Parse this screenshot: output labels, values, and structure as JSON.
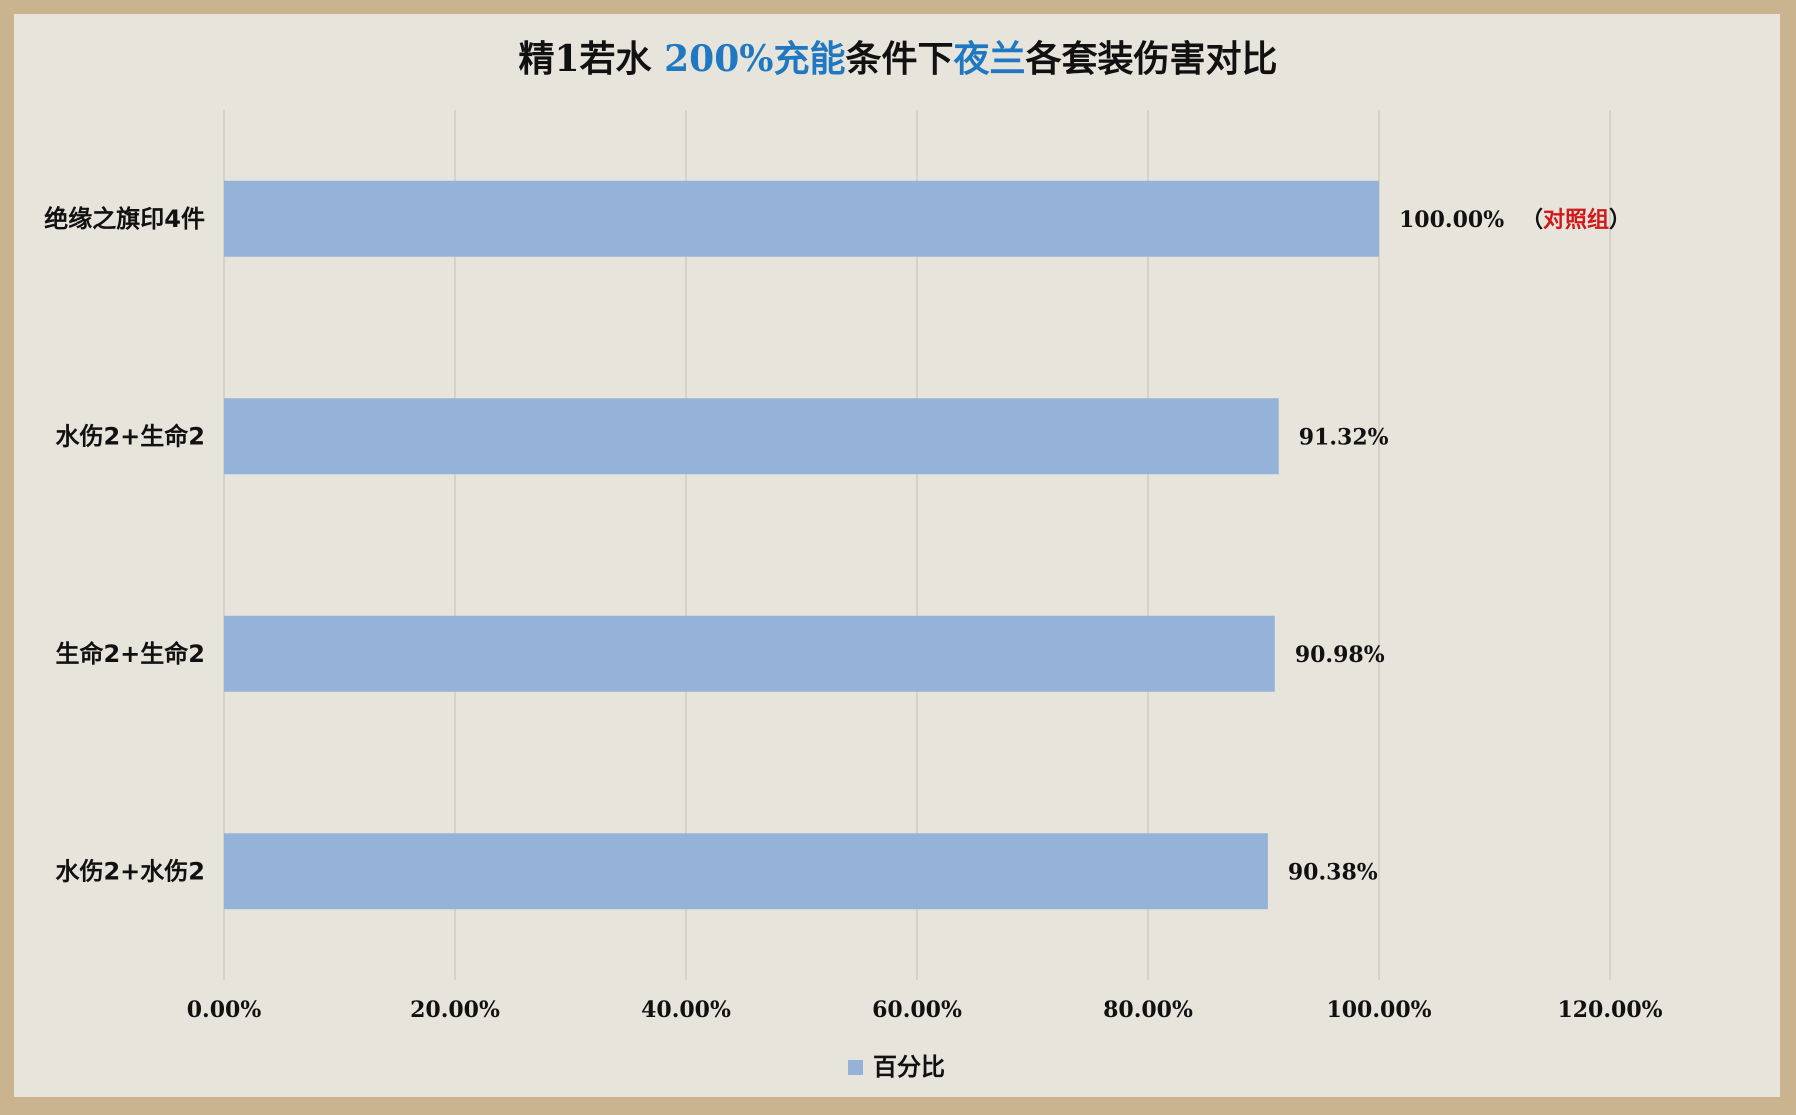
{
  "chart_data": {
    "type": "bar",
    "orientation": "horizontal",
    "title_parts": [
      {
        "text": "精1若水 ",
        "highlight": false
      },
      {
        "text": "200%充能",
        "highlight": true
      },
      {
        "text": "条件下",
        "highlight": false
      },
      {
        "text": "夜兰",
        "highlight": true
      },
      {
        "text": "各套装伤害对比",
        "highlight": false
      }
    ],
    "categories": [
      "绝缘之旗印4件",
      "水伤2+生命2",
      "生命2+生命2",
      "水伤2+水伤2"
    ],
    "series": [
      {
        "name": "百分比",
        "values": [
          100.0,
          91.32,
          90.98,
          90.38
        ],
        "labels": [
          "100.00%",
          "91.32%",
          "90.98%",
          "90.38%"
        ]
      }
    ],
    "annotation": {
      "category_index": 0,
      "open": "（",
      "text": "对照组",
      "close": "）",
      "color": "#d01818"
    },
    "xlim": [
      0,
      120
    ],
    "xticks": [
      "0.00%",
      "20.00%",
      "40.00%",
      "60.00%",
      "80.00%",
      "100.00%",
      "120.00%"
    ],
    "grid": true,
    "legend_position": "bottom",
    "colors": {
      "bar": "#95b3d8",
      "highlight_text": "#1f78c1",
      "gridline": "#d5d2ca"
    }
  }
}
